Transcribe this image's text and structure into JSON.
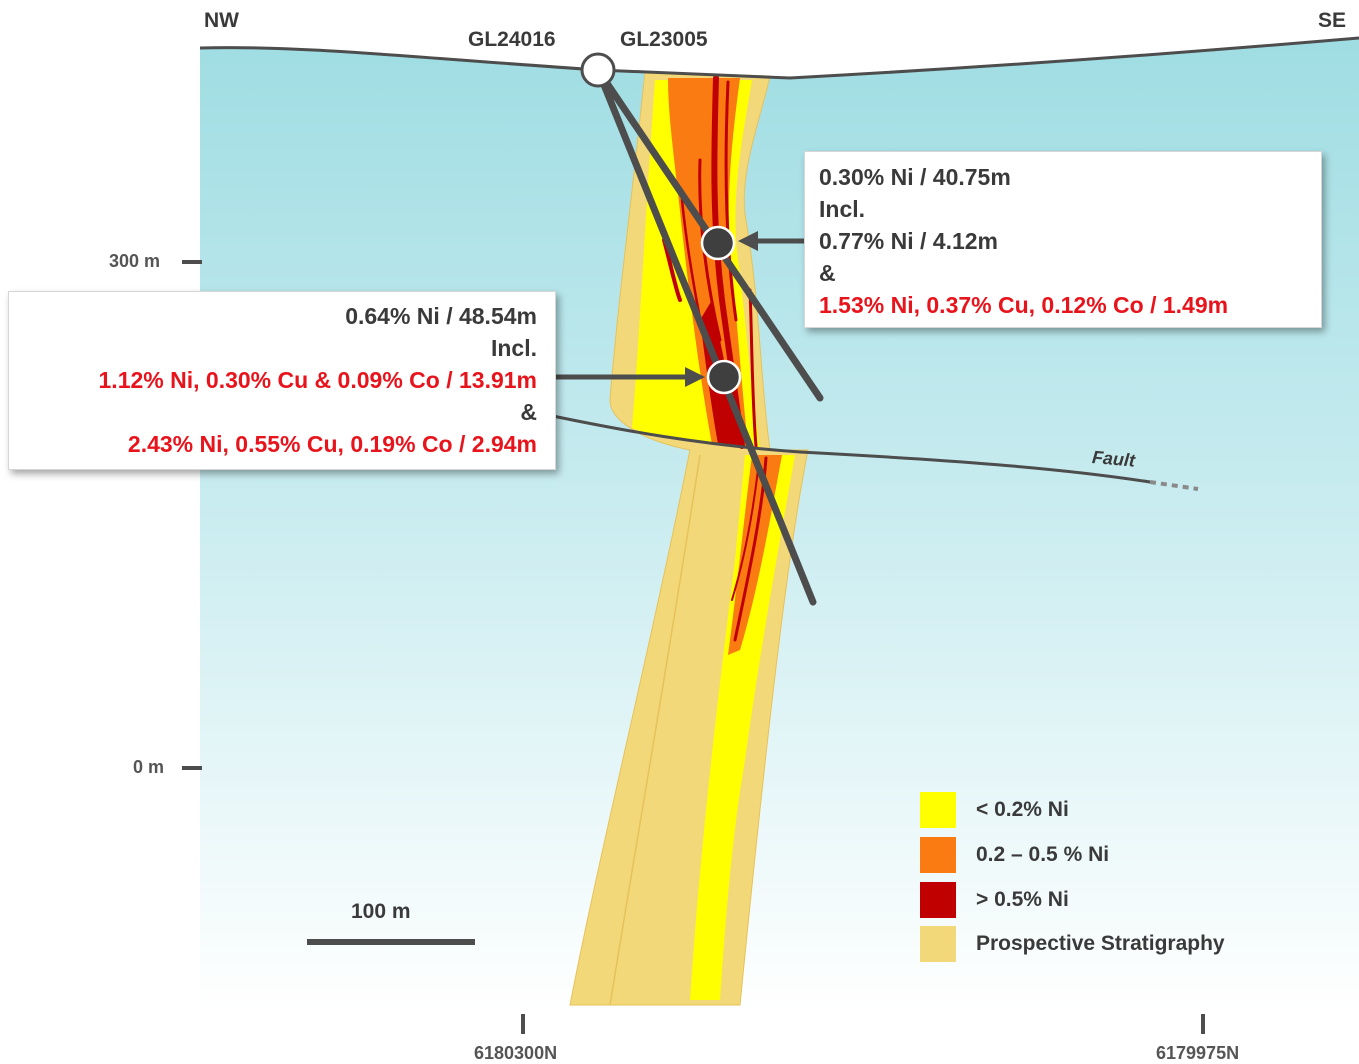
{
  "directions": {
    "left": "NW",
    "right": "SE"
  },
  "drillholes": [
    "GL24016",
    "GL23005"
  ],
  "elevation_ticks": [
    "300 m",
    "0 m"
  ],
  "northings": [
    "6180300N",
    "6179975N"
  ],
  "scale_bar": "100 m",
  "fault_label": "Fault",
  "intercept_upper": {
    "line1": "0.30% Ni / 40.75m",
    "line2": "Incl.",
    "line3": "0.77% Ni / 4.12m",
    "line4": "&",
    "line5": "1.53% Ni, 0.37% Cu, 0.12% Co / 1.49m"
  },
  "intercept_lower": {
    "line1": "0.64% Ni / 48.54m",
    "line2": "Incl.",
    "line3": "1.12% Ni, 0.30% Cu & 0.09% Co / 13.91m",
    "line4": "&",
    "line5": "2.43% Ni, 0.55% Cu, 0.19% Co / 2.94m"
  },
  "legend": [
    {
      "label": "< 0.2% Ni",
      "color": "#ffff00"
    },
    {
      "label": "0.2 – 0.5 % Ni",
      "color": "#f97b12"
    },
    {
      "label": "> 0.5% Ni",
      "color": "#c00000"
    },
    {
      "label": "Prospective Stratigraphy",
      "color": "#f3d87a"
    }
  ],
  "colors": {
    "sky_top": "#9fdde3",
    "text_red": "#e8141c",
    "line_gray": "#4d4d4d"
  }
}
